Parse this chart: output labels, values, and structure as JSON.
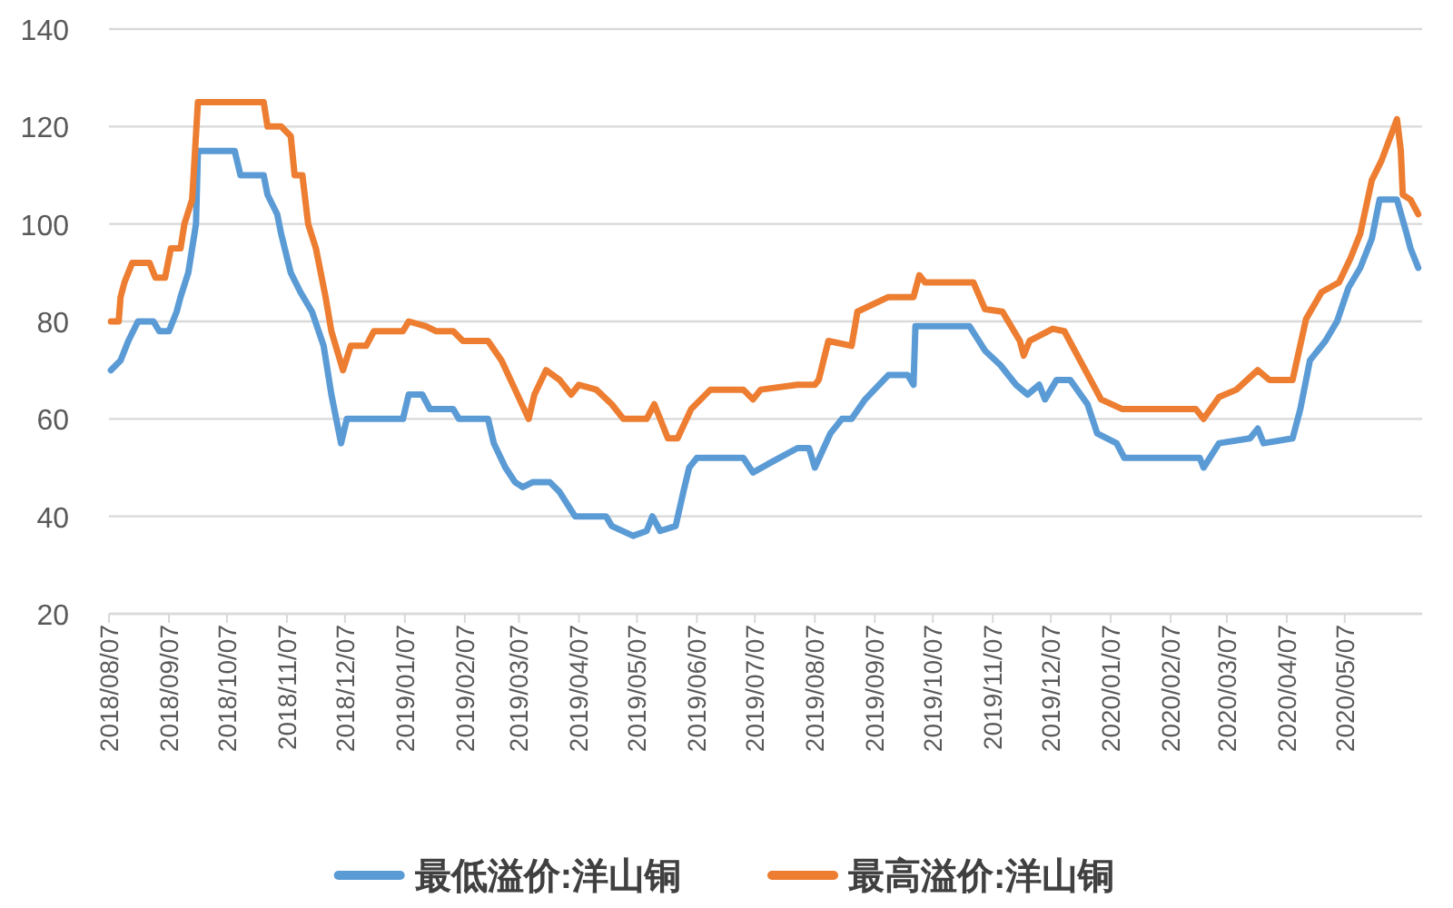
{
  "chart_data": {
    "type": "line",
    "legend": "bottom",
    "grid": "y",
    "marker": "none",
    "line_style": "solid",
    "ylim": [
      20,
      140
    ],
    "yticks": [
      20,
      40,
      60,
      80,
      100,
      120,
      140
    ],
    "xlim": [
      "2018-08-07",
      "2020-06-16"
    ],
    "xticks": [
      {
        "value": "2018-08-07",
        "label": "2018/08/07"
      },
      {
        "value": "2018-09-07",
        "label": "2018/09/07"
      },
      {
        "value": "2018-10-07",
        "label": "2018/10/07"
      },
      {
        "value": "2018-11-07",
        "label": "2018/11/07"
      },
      {
        "value": "2018-12-07",
        "label": "2018/12/07"
      },
      {
        "value": "2019-01-07",
        "label": "2019/01/07"
      },
      {
        "value": "2019-02-07",
        "label": "2019/02/07"
      },
      {
        "value": "2019-03-07",
        "label": "2019/03/07"
      },
      {
        "value": "2019-04-07",
        "label": "2019/04/07"
      },
      {
        "value": "2019-05-07",
        "label": "2019/05/07"
      },
      {
        "value": "2019-06-07",
        "label": "2019/06/07"
      },
      {
        "value": "2019-07-07",
        "label": "2019/07/07"
      },
      {
        "value": "2019-08-07",
        "label": "2019/08/07"
      },
      {
        "value": "2019-09-07",
        "label": "2019/09/07"
      },
      {
        "value": "2019-10-07",
        "label": "2019/10/07"
      },
      {
        "value": "2019-11-07",
        "label": "2019/11/07"
      },
      {
        "value": "2019-12-07",
        "label": "2019/12/07"
      },
      {
        "value": "2020-01-07",
        "label": "2020/01/07"
      },
      {
        "value": "2020-02-07",
        "label": "2020/02/07"
      },
      {
        "value": "2020-03-07",
        "label": "2020/03/07"
      },
      {
        "value": "2020-04-07",
        "label": "2020/04/07"
      },
      {
        "value": "2020-05-07",
        "label": "2020/05/07"
      }
    ],
    "series": [
      {
        "name": "最低溢价:洋山铜",
        "color": "#5b9bd5",
        "x": [
          "2018-08-08",
          "2018-08-13",
          "2018-08-17",
          "2018-08-22",
          "2018-08-30",
          "2018-09-02",
          "2018-09-07",
          "2018-09-11",
          "2018-09-13",
          "2018-09-17",
          "2018-09-21",
          "2018-09-22",
          "2018-10-11",
          "2018-10-14",
          "2018-10-26",
          "2018-10-28",
          "2018-11-02",
          "2018-11-04",
          "2018-11-09",
          "2018-11-14",
          "2018-11-20",
          "2018-11-26",
          "2018-11-30",
          "2018-12-05",
          "2018-12-08",
          "2019-01-06",
          "2019-01-09",
          "2019-01-16",
          "2019-01-20",
          "2019-02-01",
          "2019-02-04",
          "2019-02-19",
          "2019-02-22",
          "2019-02-28",
          "2019-03-05",
          "2019-03-09",
          "2019-03-14",
          "2019-03-23",
          "2019-03-28",
          "2019-04-05",
          "2019-04-21",
          "2019-04-24",
          "2019-05-05",
          "2019-05-12",
          "2019-05-15",
          "2019-05-19",
          "2019-05-27",
          "2019-05-31",
          "2019-06-03",
          "2019-06-07",
          "2019-07-01",
          "2019-07-06",
          "2019-07-15",
          "2019-07-29",
          "2019-08-04",
          "2019-08-07",
          "2019-08-15",
          "2019-08-21",
          "2019-08-26",
          "2019-09-02",
          "2019-09-14",
          "2019-09-24",
          "2019-09-27",
          "2019-09-28",
          "2019-10-26",
          "2019-11-03",
          "2019-11-11",
          "2019-11-19",
          "2019-11-25",
          "2019-12-01",
          "2019-12-04",
          "2019-12-10",
          "2019-12-17",
          "2019-12-26",
          "2019-12-31",
          "2020-01-10",
          "2020-01-14",
          "2020-02-22",
          "2020-02-24",
          "2020-03-03",
          "2020-03-19",
          "2020-03-23",
          "2020-03-26",
          "2020-04-10",
          "2020-04-14",
          "2020-04-19",
          "2020-04-27",
          "2020-05-03",
          "2020-05-09",
          "2020-05-15",
          "2020-05-21",
          "2020-05-25",
          "2020-06-03",
          "2020-06-08",
          "2020-06-10",
          "2020-06-14"
        ],
        "values": [
          70,
          72,
          76,
          80,
          80,
          78,
          78,
          82,
          85,
          90,
          100,
          115,
          115,
          110,
          110,
          106,
          102,
          98,
          90,
          86,
          82,
          75,
          65,
          55,
          60,
          60,
          65,
          65,
          62,
          62,
          60,
          60,
          55,
          50,
          47,
          46,
          47,
          47,
          45,
          40,
          40,
          38,
          36,
          37,
          40,
          37,
          38,
          45,
          50,
          52,
          52,
          49,
          51,
          54,
          54,
          50,
          57,
          60,
          60,
          64,
          69,
          69,
          67,
          79,
          79,
          74,
          71,
          67,
          65,
          67,
          64,
          68,
          68,
          63,
          57,
          55,
          52,
          52,
          50,
          55,
          56,
          58,
          55,
          56,
          62,
          72,
          76,
          80,
          87,
          91,
          97,
          105,
          105,
          98,
          95,
          91
        ]
      },
      {
        "name": "最高溢价:洋山铜",
        "color": "#ed7d31",
        "x": [
          "2018-08-08",
          "2018-08-12",
          "2018-08-13",
          "2018-08-15",
          "2018-08-19",
          "2018-08-28",
          "2018-08-31",
          "2018-09-05",
          "2018-09-08",
          "2018-09-13",
          "2018-09-15",
          "2018-09-19",
          "2018-09-22",
          "2018-10-26",
          "2018-10-28",
          "2018-11-04",
          "2018-11-09",
          "2018-11-11",
          "2018-11-15",
          "2018-11-18",
          "2018-11-22",
          "2018-11-27",
          "2018-11-30",
          "2018-12-06",
          "2018-12-10",
          "2018-12-18",
          "2018-12-22",
          "2019-01-06",
          "2019-01-09",
          "2019-01-18",
          "2019-01-23",
          "2019-02-01",
          "2019-02-06",
          "2019-02-19",
          "2019-02-26",
          "2019-03-05",
          "2019-03-12",
          "2019-03-15",
          "2019-03-21",
          "2019-03-28",
          "2019-04-03",
          "2019-04-07",
          "2019-04-16",
          "2019-04-24",
          "2019-04-30",
          "2019-05-12",
          "2019-05-16",
          "2019-05-23",
          "2019-05-28",
          "2019-06-04",
          "2019-06-14",
          "2019-07-01",
          "2019-07-06",
          "2019-07-10",
          "2019-07-29",
          "2019-08-07",
          "2019-08-09",
          "2019-08-14",
          "2019-08-26",
          "2019-08-29",
          "2019-09-14",
          "2019-09-27",
          "2019-09-30",
          "2019-10-03",
          "2019-10-28",
          "2019-11-03",
          "2019-11-12",
          "2019-11-21",
          "2019-11-23",
          "2019-11-26",
          "2019-12-08",
          "2019-12-14",
          "2020-01-02",
          "2020-01-13",
          "2020-02-20",
          "2020-02-24",
          "2020-03-03",
          "2020-03-12",
          "2020-03-23",
          "2020-03-29",
          "2020-04-10",
          "2020-04-17",
          "2020-04-25",
          "2020-05-04",
          "2020-05-10",
          "2020-05-15",
          "2020-05-21",
          "2020-05-26",
          "2020-06-03",
          "2020-06-05",
          "2020-06-06",
          "2020-06-10",
          "2020-06-14"
        ],
        "values": [
          80,
          80,
          85,
          88,
          92,
          92,
          89,
          89,
          95,
          95,
          100,
          105,
          125,
          125,
          120,
          120,
          118,
          110,
          110,
          100,
          95,
          85,
          78,
          70,
          75,
          75,
          78,
          78,
          80,
          79,
          78,
          78,
          76,
          76,
          72,
          66,
          60,
          65,
          70,
          68,
          65,
          67,
          66,
          63,
          60,
          60,
          63,
          56,
          56,
          62,
          66,
          66,
          64,
          66,
          67,
          67,
          68,
          76,
          75,
          82,
          85,
          85,
          89.5,
          88,
          88,
          82.5,
          82,
          76,
          73,
          76,
          78.5,
          78,
          64,
          62,
          62,
          60,
          64.5,
          66,
          70,
          68,
          68,
          80.5,
          86,
          88,
          93,
          98,
          109,
          113,
          121.5,
          115,
          106,
          105,
          102
        ]
      }
    ]
  }
}
